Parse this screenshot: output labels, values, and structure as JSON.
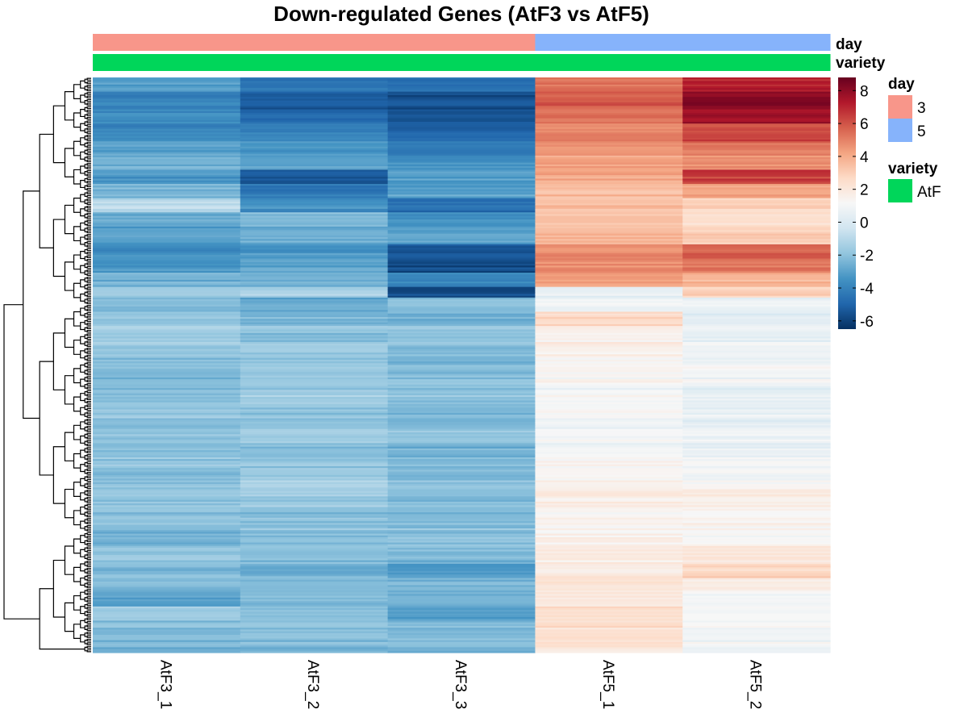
{
  "chart_data": {
    "type": "heatmap",
    "title": "Down-regulated Genes (AtF3 vs AtF5)",
    "columns": [
      "AtF3_1",
      "AtF3_2",
      "AtF3_3",
      "AtF5_1",
      "AtF5_2"
    ],
    "column_annotations": [
      {
        "name": "day",
        "values": [
          "3",
          "3",
          "3",
          "5",
          "5"
        ]
      },
      {
        "name": "variety",
        "values": [
          "AtF",
          "AtF",
          "AtF",
          "AtF",
          "AtF"
        ]
      }
    ],
    "row_blocks": [
      {
        "rows": 8,
        "values": [
          -3.2,
          -4.6,
          -4.8,
          5.2,
          7.0
        ]
      },
      {
        "rows": 10,
        "values": [
          -4.0,
          -5.2,
          -5.6,
          5.8,
          8.2
        ]
      },
      {
        "rows": 8,
        "values": [
          -3.6,
          -4.8,
          -5.4,
          5.4,
          7.6
        ]
      },
      {
        "rows": 10,
        "values": [
          -3.8,
          -4.0,
          -5.0,
          5.0,
          6.2
        ]
      },
      {
        "rows": 8,
        "values": [
          -3.0,
          -3.4,
          -4.4,
          4.6,
          5.2
        ]
      },
      {
        "rows": 8,
        "values": [
          -2.6,
          -3.0,
          -3.6,
          4.2,
          4.6
        ]
      },
      {
        "rows": 8,
        "values": [
          -3.4,
          -5.6,
          -3.2,
          4.0,
          6.4
        ]
      },
      {
        "rows": 8,
        "values": [
          -2.2,
          -4.2,
          -3.0,
          3.6,
          4.4
        ]
      },
      {
        "rows": 8,
        "values": [
          -1.0,
          -3.6,
          -4.6,
          3.4,
          2.8
        ]
      },
      {
        "rows": 8,
        "values": [
          -2.8,
          -2.4,
          -3.6,
          3.2,
          2.4
        ]
      },
      {
        "rows": 10,
        "values": [
          -3.0,
          -2.6,
          -3.0,
          3.6,
          3.0
        ]
      },
      {
        "rows": 8,
        "values": [
          -3.6,
          -3.4,
          -5.4,
          4.6,
          5.6
        ]
      },
      {
        "rows": 8,
        "values": [
          -3.4,
          -3.0,
          -5.8,
          4.8,
          5.2
        ]
      },
      {
        "rows": 8,
        "values": [
          -2.6,
          -2.8,
          -4.0,
          4.2,
          3.6
        ]
      },
      {
        "rows": 6,
        "values": [
          -1.6,
          -1.2,
          -5.8,
          0.6,
          3.0
        ]
      },
      {
        "rows": 8,
        "values": [
          -2.2,
          -2.6,
          -2.0,
          0.8,
          0.8
        ]
      },
      {
        "rows": 8,
        "values": [
          -1.8,
          -2.4,
          -2.4,
          2.8,
          0.4
        ]
      },
      {
        "rows": 10,
        "values": [
          -1.6,
          -2.0,
          -1.8,
          1.6,
          0.6
        ]
      },
      {
        "rows": 12,
        "values": [
          -2.0,
          -1.8,
          -2.4,
          1.4,
          0.7
        ]
      },
      {
        "rows": 10,
        "values": [
          -2.4,
          -1.8,
          -2.2,
          1.2,
          0.9
        ]
      },
      {
        "rows": 12,
        "values": [
          -2.2,
          -1.6,
          -2.0,
          1.0,
          0.5
        ]
      },
      {
        "rows": 12,
        "values": [
          -1.8,
          -1.9,
          -2.3,
          1.1,
          0.6
        ]
      },
      {
        "rows": 12,
        "values": [
          -2.0,
          -1.7,
          -2.0,
          0.9,
          0.7
        ]
      },
      {
        "rows": 12,
        "values": [
          -1.9,
          -2.0,
          -2.4,
          1.2,
          0.8
        ]
      },
      {
        "rows": 12,
        "values": [
          -2.1,
          -1.5,
          -2.1,
          1.3,
          1.1
        ]
      },
      {
        "rows": 10,
        "values": [
          -2.0,
          -1.7,
          -2.2,
          1.6,
          1.6
        ]
      },
      {
        "rows": 12,
        "values": [
          -1.9,
          -2.1,
          -2.2,
          1.4,
          1.4
        ]
      },
      {
        "rows": 10,
        "values": [
          -2.4,
          -2.0,
          -2.0,
          1.5,
          1.2
        ]
      },
      {
        "rows": 10,
        "values": [
          -2.0,
          -2.2,
          -2.4,
          1.7,
          1.9
        ]
      },
      {
        "rows": 8,
        "values": [
          -2.2,
          -2.6,
          -3.2,
          1.8,
          2.8
        ]
      },
      {
        "rows": 8,
        "values": [
          -2.4,
          -2.4,
          -2.6,
          2.0,
          1.6
        ]
      },
      {
        "rows": 8,
        "values": [
          -2.8,
          -2.0,
          -2.2,
          2.2,
          1.2
        ]
      },
      {
        "rows": 8,
        "values": [
          -1.8,
          -2.2,
          -3.2,
          2.4,
          1.0
        ]
      },
      {
        "rows": 10,
        "values": [
          -2.2,
          -2.0,
          -2.4,
          2.4,
          0.9
        ]
      },
      {
        "rows": 8,
        "values": [
          -2.4,
          -2.2,
          -2.2,
          2.2,
          0.8
        ]
      }
    ],
    "colorbar": {
      "min": -6.5,
      "max": 8.8,
      "ticks": [
        8,
        6,
        4,
        2,
        0,
        -2,
        -4,
        -6
      ],
      "palette": [
        "#053061",
        "#2166ac",
        "#4393c3",
        "#92c5de",
        "#d1e5f0",
        "#f7f7f7",
        "#fddbc7",
        "#f4a582",
        "#d6604d",
        "#b2182b",
        "#67001f"
      ]
    },
    "legend": {
      "day": {
        "title": "day",
        "items": [
          {
            "label": "3",
            "color": "#f8968a"
          },
          {
            "label": "5",
            "color": "#86b3fb"
          }
        ]
      },
      "variety": {
        "title": "variety",
        "items": [
          {
            "label": "AtF",
            "color": "#00d65a"
          }
        ]
      }
    },
    "dendrogram": "rows"
  }
}
